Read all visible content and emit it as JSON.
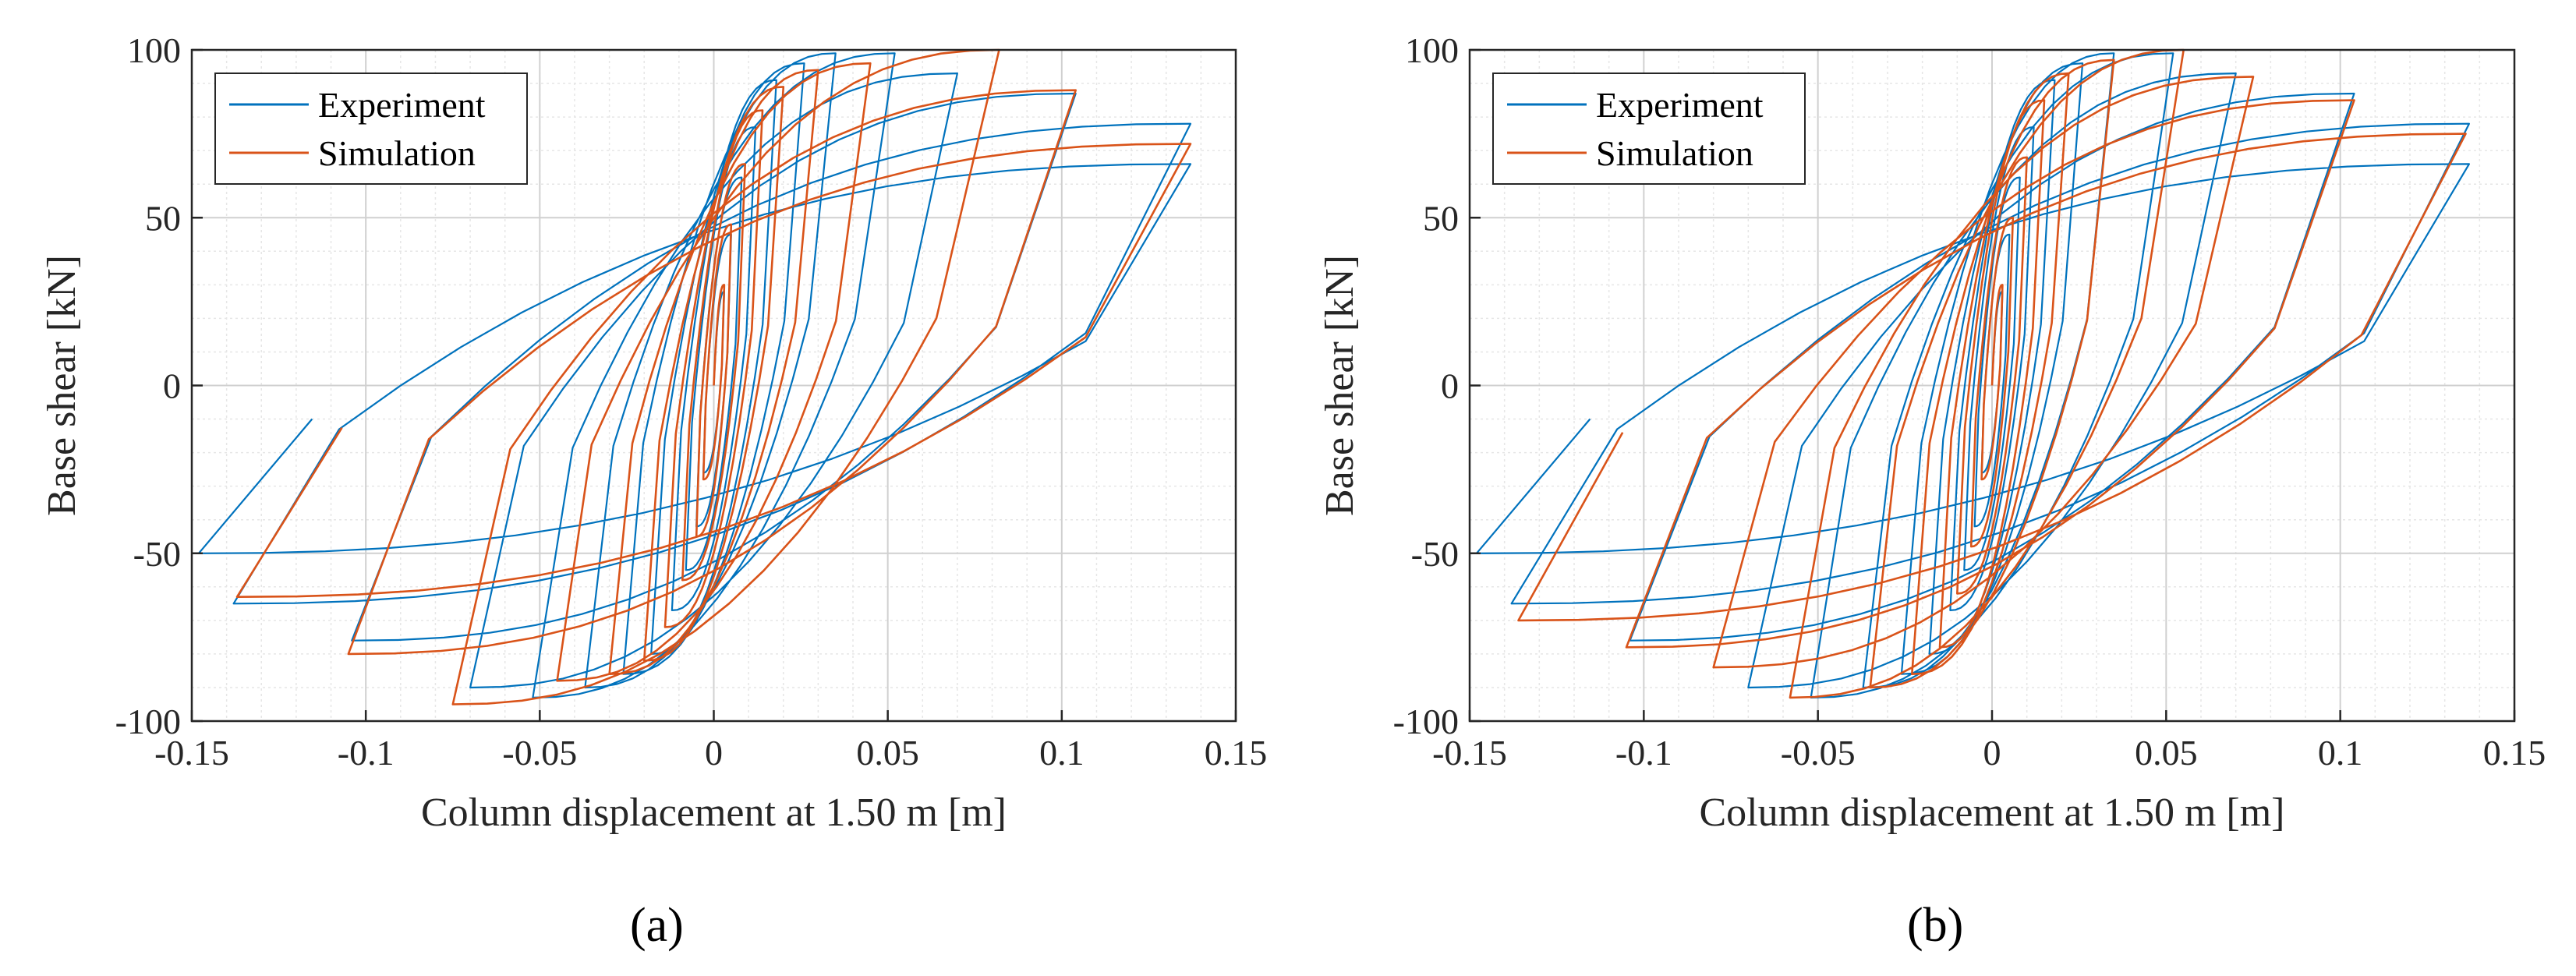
{
  "charts": [
    {
      "panel": "(a)",
      "chart_data": {
        "type": "line",
        "xlabel": "Column displacement at 1.50 m [m]",
        "ylabel": "Base shear [kN]",
        "xlim": [
          -0.15,
          0.15
        ],
        "ylim": [
          -100,
          100
        ],
        "xticks": [
          "-0.15",
          "-0.1",
          "-0.05",
          "0",
          "0.05",
          "0.1",
          "0.15"
        ],
        "yticks": [
          "100",
          "50",
          "0",
          "-50",
          "-100"
        ],
        "grid": "major and minor",
        "legend_position": "top-left",
        "series": [
          {
            "name": "Experiment",
            "color": "#0072BD",
            "cycles": [
              {
                "a": 0.003,
                "up": 28,
                "b": -0.003,
                "lo": -26
              },
              {
                "a": 0.005,
                "up": 45,
                "b": -0.005,
                "lo": -42
              },
              {
                "a": 0.008,
                "up": 62,
                "b": -0.008,
                "lo": -55
              },
              {
                "a": 0.012,
                "up": 77,
                "b": -0.012,
                "lo": -67
              },
              {
                "a": 0.018,
                "up": 91,
                "b": -0.018,
                "lo": -80
              },
              {
                "a": 0.026,
                "up": 96,
                "b": -0.026,
                "lo": -86
              },
              {
                "a": 0.035,
                "up": 99,
                "b": -0.037,
                "lo": -90
              },
              {
                "a": 0.052,
                "up": 99,
                "b": -0.052,
                "lo": -93
              },
              {
                "a": 0.07,
                "up": 93,
                "b": -0.07,
                "lo": -90
              },
              {
                "a": 0.104,
                "up": 87,
                "b": -0.104,
                "lo": -76
              },
              {
                "a": 0.137,
                "up": 78,
                "b": -0.138,
                "lo": -65
              },
              {
                "a": 0.137,
                "up": 66,
                "b": -0.148,
                "lo": -50
              }
            ]
          },
          {
            "name": "Simulation",
            "color": "#D95319",
            "cycles": [
              {
                "a": 0.003,
                "up": 30,
                "b": -0.003,
                "lo": -28
              },
              {
                "a": 0.005,
                "up": 48,
                "b": -0.005,
                "lo": -45
              },
              {
                "a": 0.009,
                "up": 66,
                "b": -0.009,
                "lo": -58
              },
              {
                "a": 0.014,
                "up": 82,
                "b": -0.014,
                "lo": -72
              },
              {
                "a": 0.02,
                "up": 89,
                "b": -0.02,
                "lo": -82
              },
              {
                "a": 0.03,
                "up": 94,
                "b": -0.03,
                "lo": -86
              },
              {
                "a": 0.045,
                "up": 96,
                "b": -0.045,
                "lo": -88
              },
              {
                "a": 0.082,
                "up": 100,
                "b": -0.075,
                "lo": -95
              },
              {
                "a": 0.104,
                "up": 88,
                "b": -0.105,
                "lo": -80
              },
              {
                "a": 0.137,
                "up": 72,
                "b": -0.137,
                "lo": -63
              }
            ]
          }
        ]
      }
    },
    {
      "panel": "(b)",
      "chart_data": {
        "type": "line",
        "xlabel": "Column displacement at 1.50 m [m]",
        "ylabel": "Base shear [kN]",
        "xlim": [
          -0.15,
          0.15
        ],
        "ylim": [
          -100,
          100
        ],
        "xticks": [
          "-0.15",
          "-0.1",
          "-0.05",
          "0",
          "0.05",
          "0.1",
          "0.15"
        ],
        "yticks": [
          "100",
          "50",
          "0",
          "-50",
          "-100"
        ],
        "grid": "major and minor",
        "legend_position": "top-left",
        "series": [
          {
            "name": "Experiment",
            "color": "#0072BD",
            "cycles": [
              {
                "a": 0.003,
                "up": 28,
                "b": -0.003,
                "lo": -26
              },
              {
                "a": 0.005,
                "up": 45,
                "b": -0.005,
                "lo": -42
              },
              {
                "a": 0.008,
                "up": 62,
                "b": -0.008,
                "lo": -55
              },
              {
                "a": 0.012,
                "up": 77,
                "b": -0.012,
                "lo": -67
              },
              {
                "a": 0.018,
                "up": 91,
                "b": -0.018,
                "lo": -80
              },
              {
                "a": 0.026,
                "up": 96,
                "b": -0.026,
                "lo": -86
              },
              {
                "a": 0.035,
                "up": 99,
                "b": -0.037,
                "lo": -90
              },
              {
                "a": 0.052,
                "up": 99,
                "b": -0.052,
                "lo": -93
              },
              {
                "a": 0.07,
                "up": 93,
                "b": -0.07,
                "lo": -90
              },
              {
                "a": 0.104,
                "up": 87,
                "b": -0.104,
                "lo": -76
              },
              {
                "a": 0.137,
                "up": 78,
                "b": -0.138,
                "lo": -65
              },
              {
                "a": 0.137,
                "up": 66,
                "b": -0.148,
                "lo": -50
              }
            ]
          },
          {
            "name": "Simulation",
            "color": "#D95319",
            "cycles": [
              {
                "a": 0.003,
                "up": 30,
                "b": -0.003,
                "lo": -28
              },
              {
                "a": 0.006,
                "up": 50,
                "b": -0.006,
                "lo": -48
              },
              {
                "a": 0.01,
                "up": 68,
                "b": -0.01,
                "lo": -62
              },
              {
                "a": 0.015,
                "up": 85,
                "b": -0.015,
                "lo": -78
              },
              {
                "a": 0.022,
                "up": 93,
                "b": -0.023,
                "lo": -86
              },
              {
                "a": 0.035,
                "up": 97,
                "b": -0.035,
                "lo": -90
              },
              {
                "a": 0.055,
                "up": 100,
                "b": -0.058,
                "lo": -93
              },
              {
                "a": 0.075,
                "up": 92,
                "b": -0.08,
                "lo": -84
              },
              {
                "a": 0.104,
                "up": 85,
                "b": -0.105,
                "lo": -78
              },
              {
                "a": 0.136,
                "up": 75,
                "b": -0.136,
                "lo": -70
              }
            ]
          }
        ]
      }
    }
  ]
}
